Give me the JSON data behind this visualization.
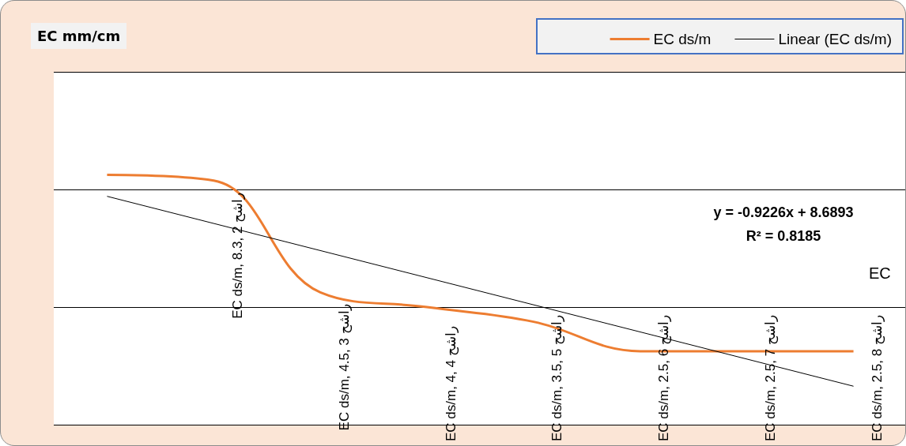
{
  "chart_data": {
    "type": "line",
    "title": "EC mm/cm",
    "categories": [
      null,
      null,
      null,
      null,
      null,
      null,
      null,
      null
    ],
    "series": [
      {
        "name": "EC ds/m",
        "color": "#ed7d31",
        "values": [
          8.5,
          8.3,
          4.5,
          4,
          3.5,
          2.5,
          2.5,
          2.5
        ],
        "value_labels": [
          null,
          "EC ds/m, 8.3, راشح 2",
          "EC ds/m, 4.5, راشح 3",
          "EC ds/m, 4, راشح 4",
          "EC ds/m, 3.5, راشح 5",
          "EC ds/m, 2.5, راشح 6",
          "EC ds/m, 2.5, راشح 7",
          "EC ds/m, 2.5, راشح 8"
        ]
      },
      {
        "name": "Linear (EC ds/m)",
        "color": "#000000",
        "values": [
          7.7667,
          null,
          null,
          null,
          null,
          null,
          null,
          1.3085
        ]
      }
    ],
    "ylim": [
      0,
      12
    ],
    "yticks": [
      {
        "value": 0,
        "label": null
      },
      {
        "value": 4,
        "label": null
      },
      {
        "value": 8,
        "label": null
      },
      {
        "value": 12,
        "label": null
      }
    ],
    "grid": "y",
    "legend": "top right",
    "marker": "none",
    "line_style": "solid",
    "annotations": [
      "y = -0.9226x + 8.6893",
      "R² = 0.8185",
      "EC"
    ]
  }
}
